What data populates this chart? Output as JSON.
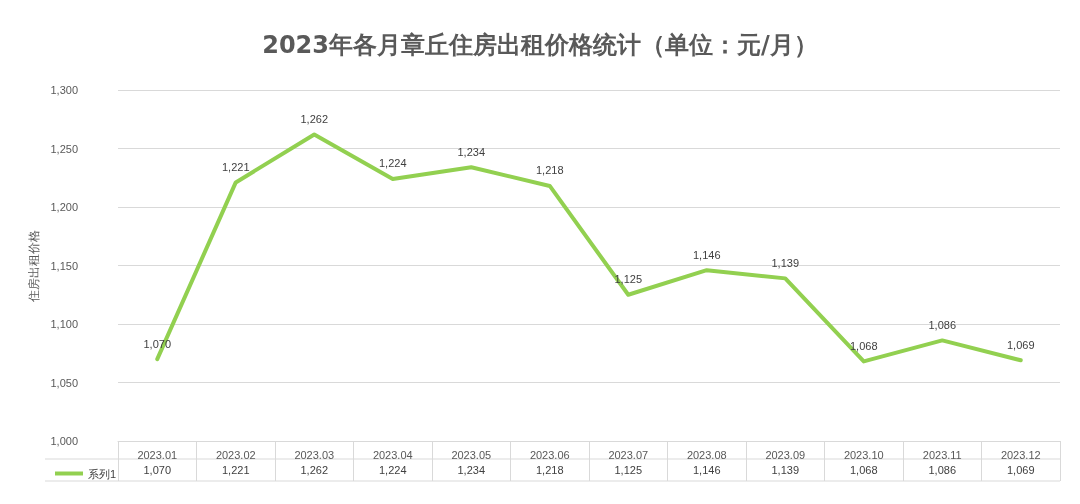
{
  "chart_data": {
    "type": "line",
    "title": "2023年各月章丘住房出租价格统计（单位：元/月）",
    "ylabel": "住房出租价格",
    "categories": [
      "2023.01",
      "2023.02",
      "2023.03",
      "2023.04",
      "2023.05",
      "2023.06",
      "2023.07",
      "2023.08",
      "2023.09",
      "2023.10",
      "2023.11",
      "2023.12"
    ],
    "series": [
      {
        "name": "系列1",
        "color": "#92d050",
        "values": [
          1070,
          1221,
          1262,
          1224,
          1234,
          1218,
          1125,
          1146,
          1139,
          1068,
          1086,
          1069
        ],
        "value_labels": [
          "1,070",
          "1,221",
          "1,262",
          "1,224",
          "1,234",
          "1,218",
          "1,125",
          "1,146",
          "1,139",
          "1,068",
          "1,086",
          "1,069"
        ]
      }
    ],
    "ylim": [
      1000,
      1300
    ],
    "yticks": [
      {
        "value": 1000,
        "label": "1,000"
      },
      {
        "value": 1050,
        "label": "1,050"
      },
      {
        "value": 1100,
        "label": "1,100"
      },
      {
        "value": 1150,
        "label": "1,150"
      },
      {
        "value": 1200,
        "label": "1,200"
      },
      {
        "value": 1250,
        "label": "1,250"
      },
      {
        "value": 1300,
        "label": "1,300"
      }
    ],
    "grid": "y",
    "legend": "bottom left",
    "marker": "none",
    "line_style": "solid"
  }
}
